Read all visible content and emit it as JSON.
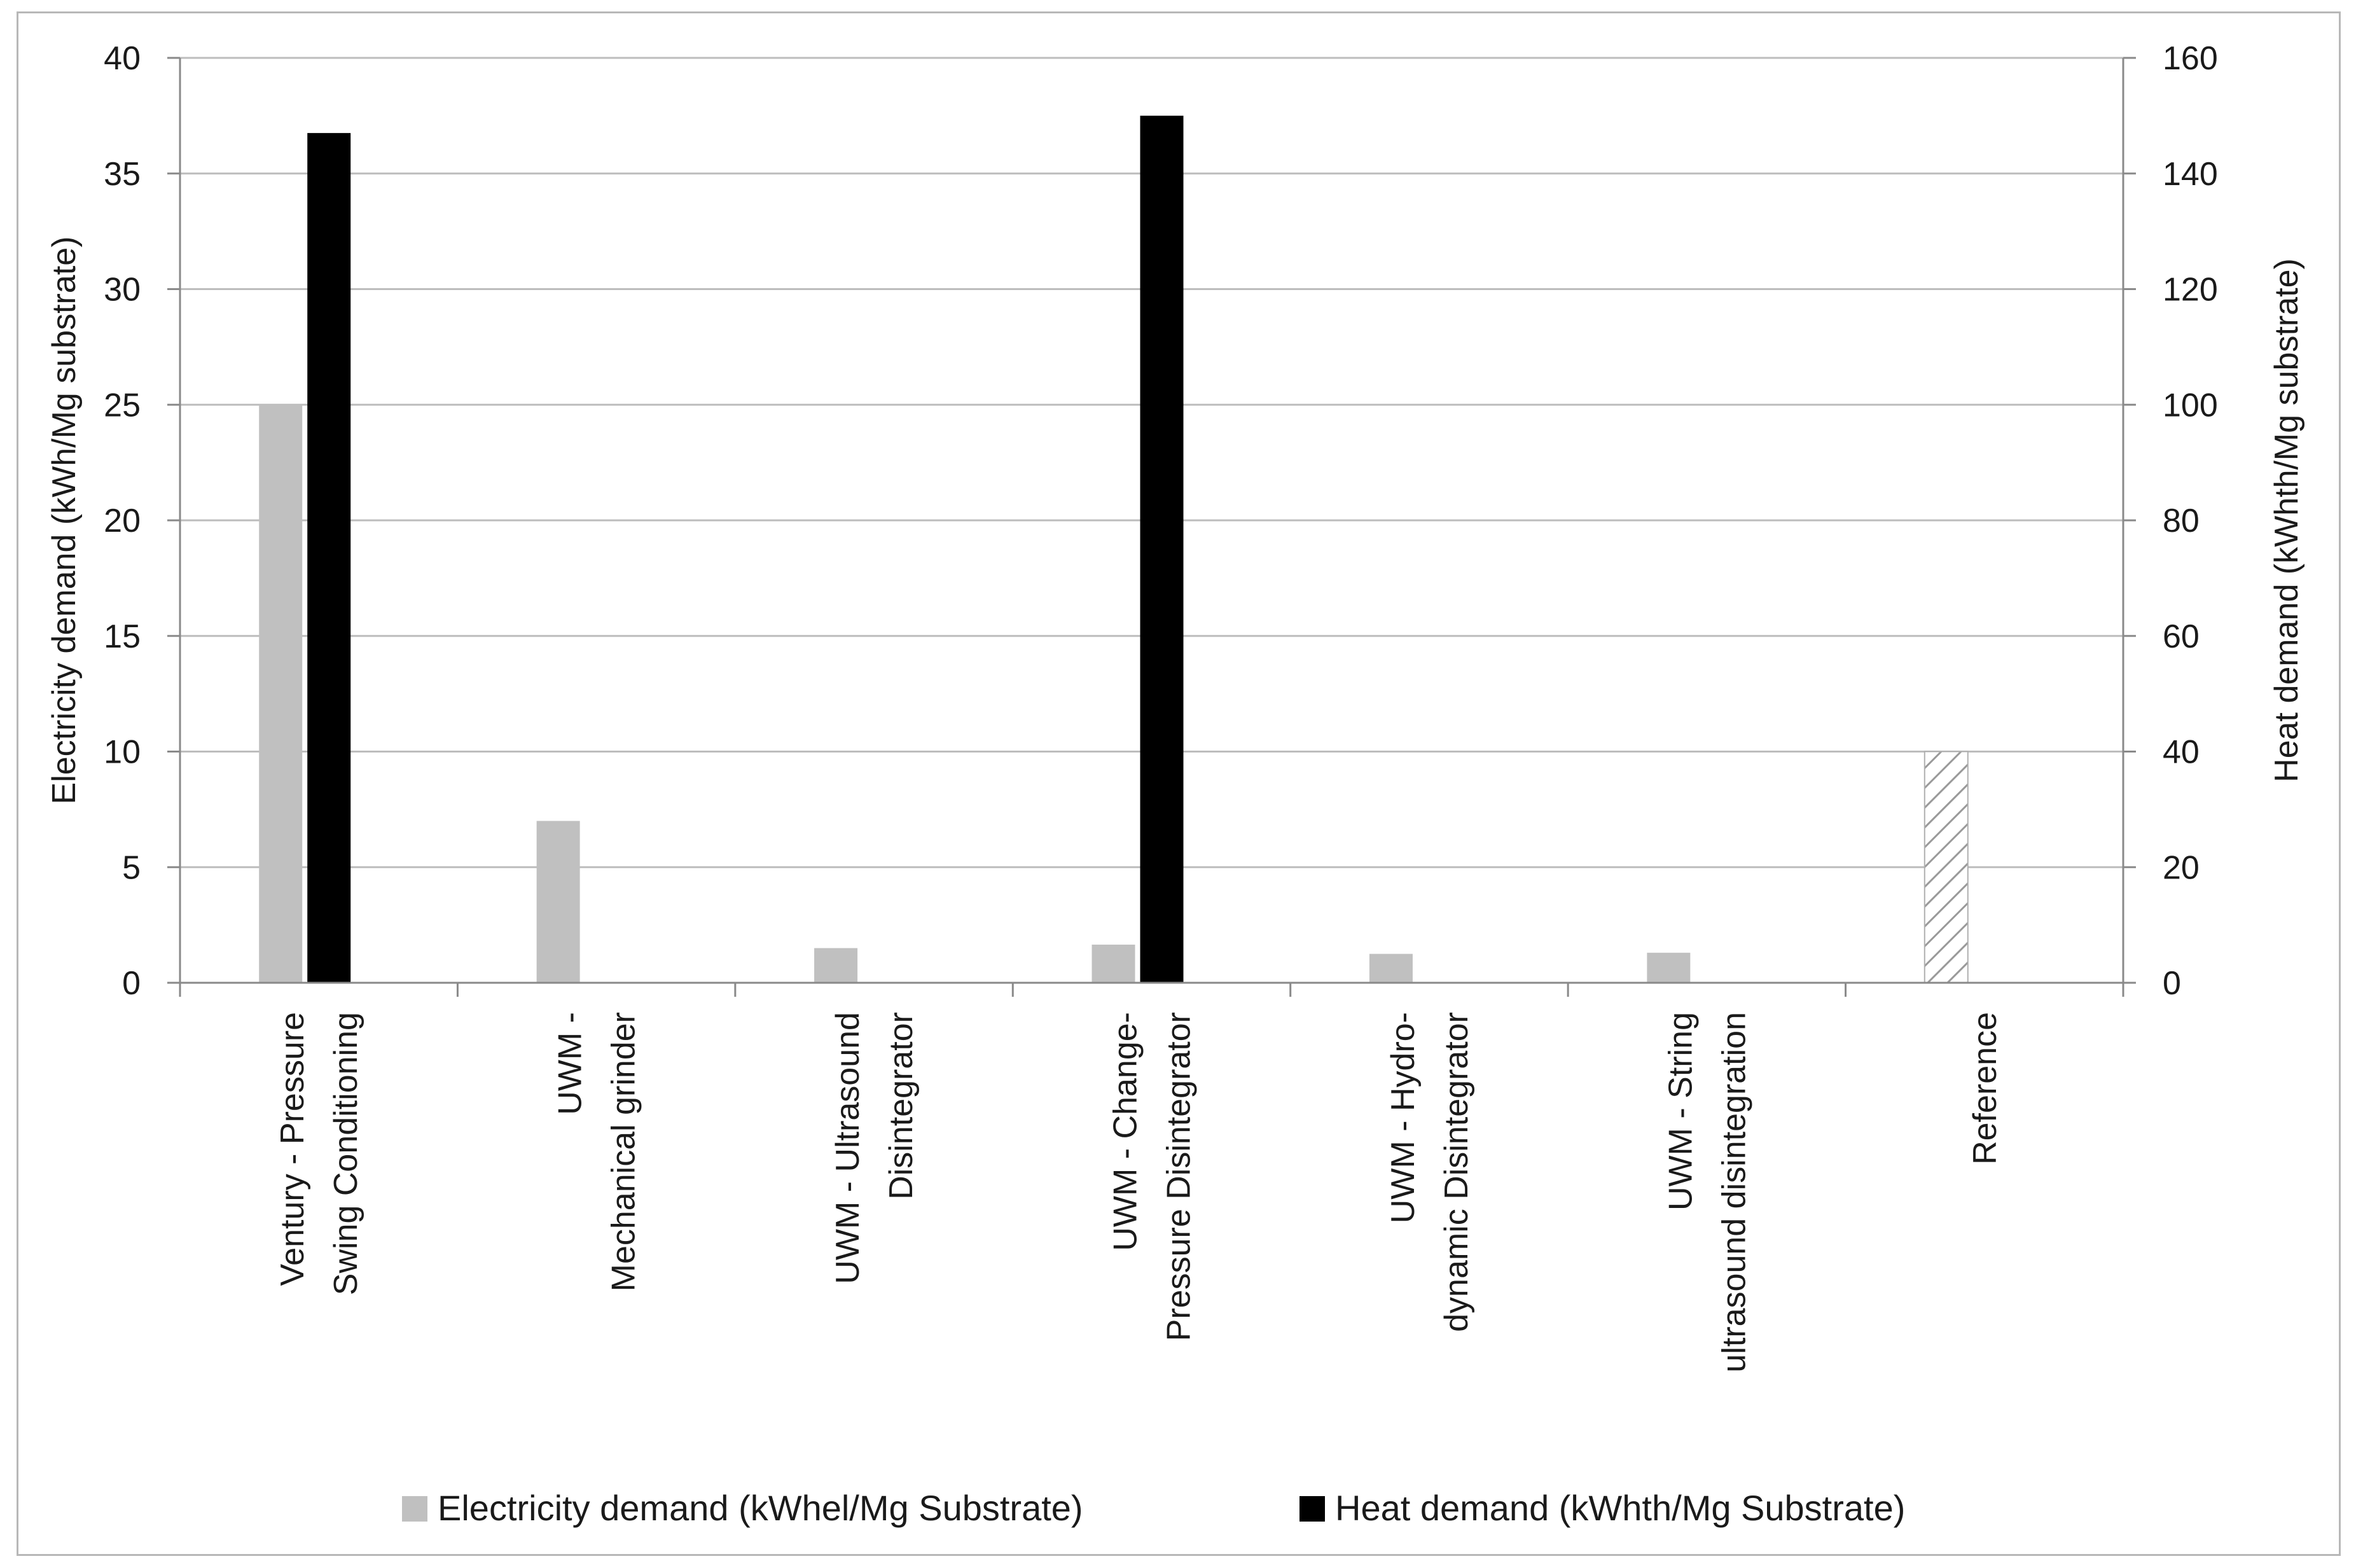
{
  "chart_data": {
    "type": "bar",
    "categories": [
      [
        "Ventury - Pressure",
        "Swing Conditioning"
      ],
      [
        "UWM -",
        "Mechanical grinder"
      ],
      [
        "UWM - Ultrasound",
        "Disintegrator"
      ],
      [
        "UWM - Change-",
        "Pressure Disintegrator"
      ],
      [
        "UWM - Hydro-",
        "dynamic Disintegrator"
      ],
      [
        "UWM - String",
        "ultrasound disintegration"
      ],
      [
        "Reference"
      ]
    ],
    "series": [
      {
        "name": "Electricity demand (kWhel/Mg Substrate)",
        "axis": "left",
        "color": "#c0c0c0",
        "values": [
          25,
          7,
          1.5,
          1.65,
          1.25,
          1.3,
          10
        ],
        "hatched": [
          false,
          false,
          false,
          false,
          false,
          false,
          true
        ]
      },
      {
        "name": "Heat demand (kWhth/Mg Substrate)",
        "axis": "right",
        "color": "#000000",
        "values": [
          147,
          0,
          0,
          150,
          0,
          0,
          0
        ]
      }
    ],
    "ylabel": "Electricity demand (kWh/Mg substrate)",
    "ylabel_right": "Heat demand (kWhth/Mg substrate)",
    "ylim": [
      0,
      40
    ],
    "ylim_right": [
      0,
      160
    ],
    "yticks": [
      "0",
      "5",
      "10",
      "15",
      "20",
      "25",
      "30",
      "35",
      "40"
    ],
    "yticks_right": [
      "0",
      "20",
      "40",
      "60",
      "80",
      "100",
      "120",
      "140",
      "160"
    ],
    "grid": true,
    "legend_position": "bottom"
  }
}
